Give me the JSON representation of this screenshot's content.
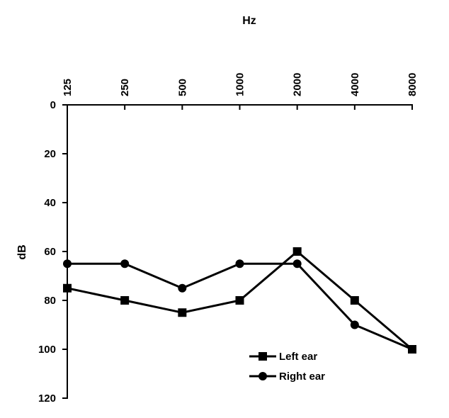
{
  "chart_data": {
    "type": "line",
    "title": "",
    "xlabel": "Hz",
    "ylabel": "dB",
    "x_axis_position": "top",
    "y_axis_inverted": true,
    "categories": [
      "125",
      "250",
      "500",
      "1000",
      "2000",
      "4000",
      "8000"
    ],
    "y_ticks": [
      "0",
      "20",
      "40",
      "60",
      "80",
      "100",
      "120"
    ],
    "ylim": [
      0,
      120
    ],
    "grid": false,
    "legend_position": "bottom-right",
    "series": [
      {
        "name": "Left ear",
        "marker": "square",
        "color": "#000000",
        "values": [
          75,
          80,
          85,
          80,
          60,
          80,
          100
        ]
      },
      {
        "name": "Right ear",
        "marker": "circle",
        "color": "#000000",
        "values": [
          65,
          65,
          75,
          65,
          65,
          90,
          100
        ]
      }
    ]
  }
}
